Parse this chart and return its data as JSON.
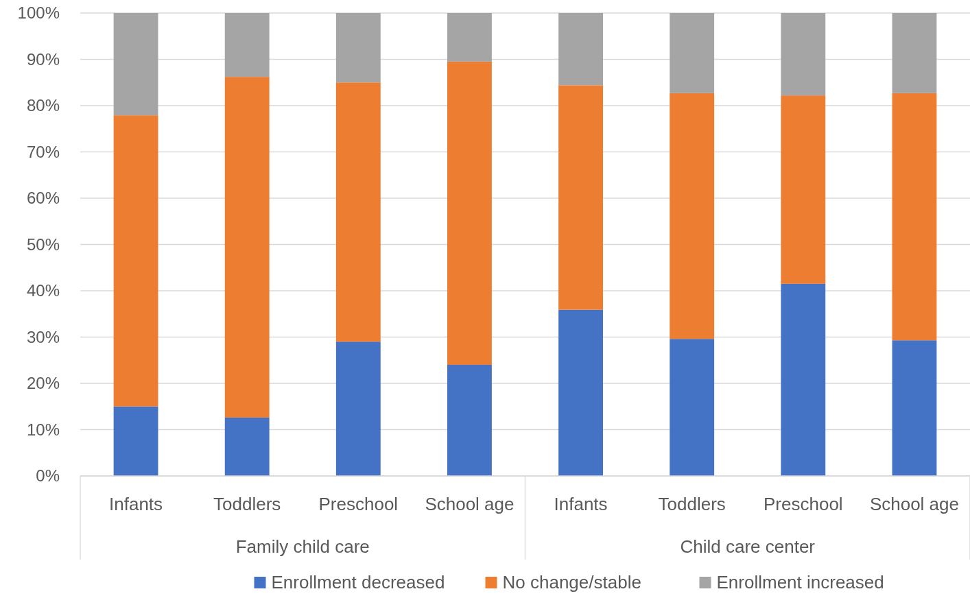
{
  "chart_data": {
    "type": "bar",
    "stacked": true,
    "categories": [
      "Infants",
      "Toddlers",
      "Preschool",
      "School age",
      "Infants",
      "Toddlers",
      "Preschool",
      "School age"
    ],
    "annotations": [
      "Family child care",
      "Child care center"
    ],
    "series": [
      {
        "name": "Enrollment decreased",
        "color": "#4472c4",
        "values": [
          15,
          12.6,
          29,
          24,
          35.9,
          29.6,
          41.5,
          29.3
        ]
      },
      {
        "name": "No change/stable",
        "color": "#ed7d31",
        "values": [
          62.9,
          73.6,
          56,
          65.5,
          48.5,
          53.1,
          40.7,
          53.4
        ]
      },
      {
        "name": "Enrollment increased",
        "color": "#a5a5a5",
        "values": [
          22.1,
          13.8,
          15,
          10.5,
          15.6,
          17.3,
          17.8,
          17.3
        ]
      }
    ],
    "ylim": [
      0,
      100
    ],
    "yticks": [
      {
        "value": 0,
        "label": "0%"
      },
      {
        "value": 10,
        "label": "10%"
      },
      {
        "value": 20,
        "label": "20%"
      },
      {
        "value": 30,
        "label": "30%"
      },
      {
        "value": 40,
        "label": "40%"
      },
      {
        "value": 50,
        "label": "50%"
      },
      {
        "value": 60,
        "label": "60%"
      },
      {
        "value": 70,
        "label": "70%"
      },
      {
        "value": 80,
        "label": "80%"
      },
      {
        "value": 90,
        "label": "90%"
      },
      {
        "value": 100,
        "label": "100%"
      }
    ],
    "grid": "y",
    "legend": "bottom"
  }
}
